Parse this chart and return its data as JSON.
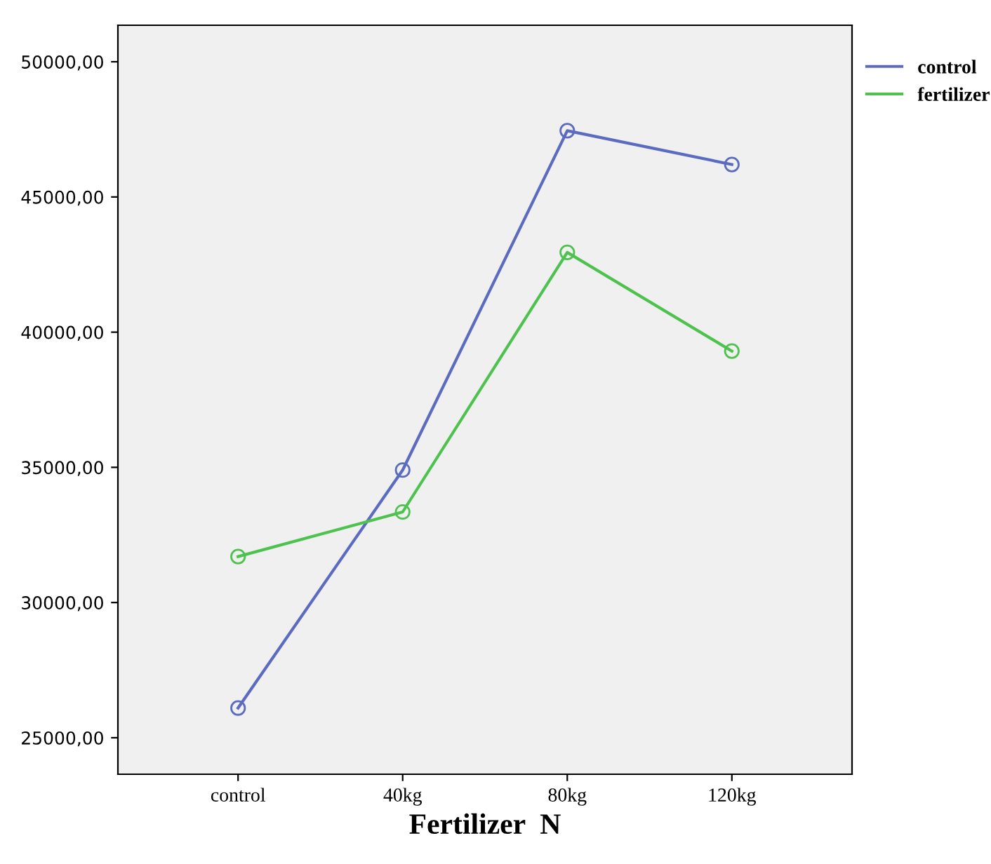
{
  "chart_data": {
    "type": "line",
    "xlabel": "Fertilizer  N",
    "categories": [
      "control",
      "40kg",
      "80kg",
      "120kg"
    ],
    "series": [
      {
        "name": "control",
        "color": "#5b6bbf",
        "values": [
          26100,
          34900,
          47450,
          46200
        ]
      },
      {
        "name": "fertilizer",
        "color": "#4ec24e",
        "values": [
          31700,
          33350,
          42950,
          39300
        ]
      }
    ],
    "ylim": [
      23650,
      51350
    ],
    "yticks": [
      {
        "value": 25000,
        "label": "25000,00"
      },
      {
        "value": 30000,
        "label": "30000,00"
      },
      {
        "value": 35000,
        "label": "35000,00"
      },
      {
        "value": 40000,
        "label": "40000,00"
      },
      {
        "value": 45000,
        "label": "45000,00"
      },
      {
        "value": 50000,
        "label": "50000,00"
      }
    ],
    "marker": "circle",
    "line_style": "solid",
    "grid": false,
    "legend": "top right"
  }
}
